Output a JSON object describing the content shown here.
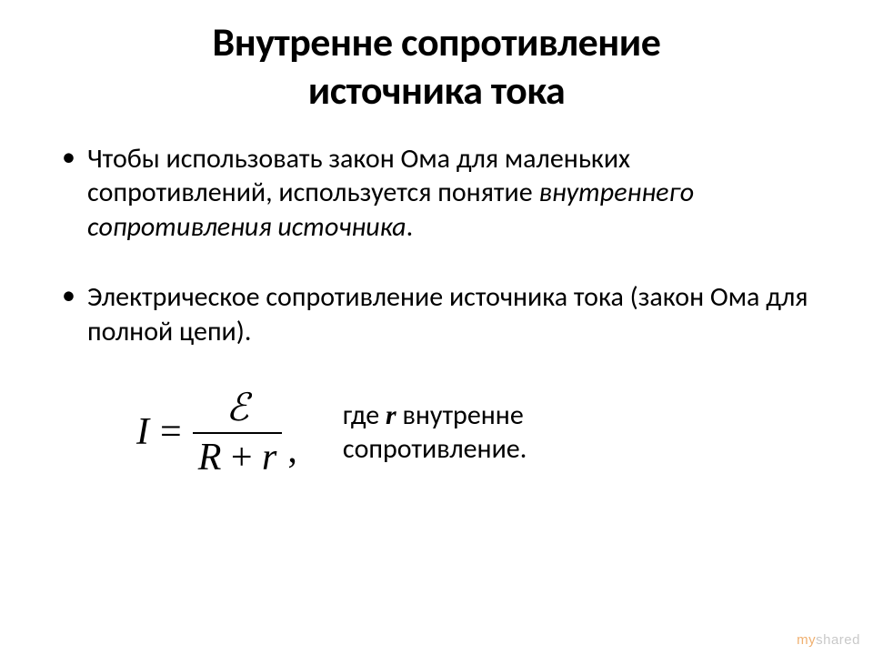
{
  "title_line1": "Внутренне сопротивление",
  "title_line2": "источника тока",
  "bullets": [
    {
      "pre": "Чтобы использовать закон Ома для маленьких сопротивлений, используется понятие ",
      "italic": "внутреннего сопротивления источника",
      "post": "."
    },
    {
      "pre": "Электрическое сопротивление источника тока (закон Ома для полной цепи).",
      "italic": "",
      "post": ""
    }
  ],
  "formula": {
    "lhs": "I",
    "eq": "=",
    "numerator": "ℰ",
    "denom_R": "R",
    "denom_plus": " + ",
    "denom_r": "r",
    "comma": ","
  },
  "where": {
    "pre": "где   ",
    "r": "r",
    "mid": "   внутренне",
    "line2": "сопротивление."
  },
  "watermark": {
    "my": "my",
    "shared": "shared"
  },
  "colors": {
    "background": "#ffffff",
    "text": "#000000",
    "watermark_gray": "#c9c9c9",
    "watermark_orange": "#f0b070"
  },
  "typography": {
    "body_font": "Calibri",
    "formula_font": "Times New Roman",
    "title_fontsize": 44,
    "body_fontsize": 30,
    "formula_fontsize": 42
  }
}
